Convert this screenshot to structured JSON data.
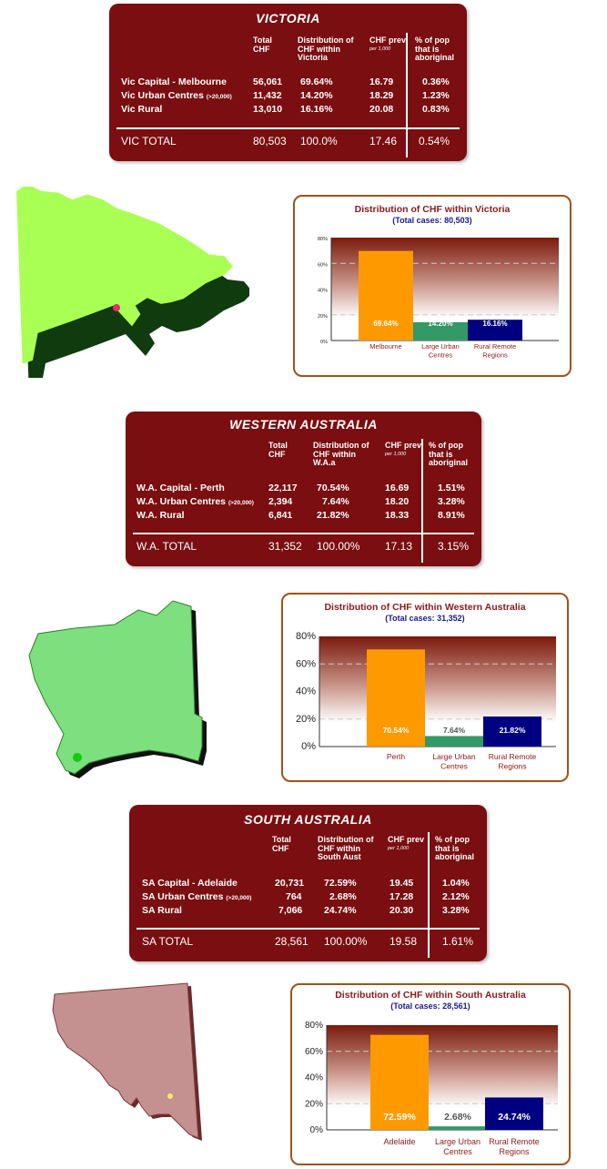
{
  "sections": [
    {
      "table": {
        "title": "VICTORIA",
        "headers": {
          "total": "Total CHF",
          "dist": "Distribution of CHF within Victoria",
          "prev": "CHF prev",
          "prev_note": "per 1,000",
          "pop": "% of pop that is aboriginal"
        },
        "rows": [
          {
            "label": "Vic  Capital - Melbourne",
            "note": "",
            "total": "56,061",
            "dist": "69.64%",
            "prev": "16.79",
            "pop": "0.36%"
          },
          {
            "label": "Vic  Urban Centres",
            "note": "(>20,000)",
            "total": "11,432",
            "dist": "14.20%",
            "prev": "18.29",
            "pop": "1.23%"
          },
          {
            "label": "Vic  Rural",
            "note": "",
            "total": "13,010",
            "dist": "16.16%",
            "prev": "20.08",
            "pop": "0.83%"
          }
        ],
        "total_row": {
          "label": "VIC TOTAL",
          "total": "80,503",
          "dist": "100.0%",
          "prev": "17.46",
          "pop": "0.54%"
        }
      }
    },
    {
      "table": {
        "title": "WESTERN AUSTRALIA",
        "headers": {
          "total": "Total CHF",
          "dist": "Distribution of CHF within W.A.a",
          "prev": "CHF prev",
          "prev_note": "per 1,000",
          "pop": "% of pop that is aboriginal"
        },
        "rows": [
          {
            "label": "W.A.  Capital - Perth",
            "note": "",
            "total": "22,117",
            "dist": "70.54%",
            "prev": "16.69",
            "pop": "1.51%"
          },
          {
            "label": "W.A.  Urban Centres",
            "note": "(>20,000)",
            "total": "2,394",
            "dist": "7.64%",
            "prev": "18.20",
            "pop": "3.28%"
          },
          {
            "label": "W.A.  Rural",
            "note": "",
            "total": "6,841",
            "dist": "21.82%",
            "prev": "18.33",
            "pop": "8.91%"
          }
        ],
        "total_row": {
          "label": "W.A.  TOTAL",
          "total": "31,352",
          "dist": "100.00%",
          "prev": "17.13",
          "pop": "3.15%"
        }
      }
    },
    {
      "table": {
        "title": "SOUTH AUSTRALIA",
        "headers": {
          "total": "Total CHF",
          "dist": "Distribution of CHF within South Aust",
          "prev": "CHF prev",
          "prev_note": "per 1,000",
          "pop": "% of pop that is aboriginal"
        },
        "rows": [
          {
            "label": "SA Capital - Adelaide",
            "note": "",
            "total": "20,731",
            "dist": "72.59%",
            "prev": "19.45",
            "pop": "1.04%"
          },
          {
            "label": "SA Urban Centres",
            "note": "(>20,000)",
            "total": "764",
            "dist": "2.68%",
            "prev": "17.28",
            "pop": "2.12%"
          },
          {
            "label": "SA Rural",
            "note": "",
            "total": "7,066",
            "dist": "24.74%",
            "prev": "20.30",
            "pop": "3.28%"
          }
        ],
        "total_row": {
          "label": "SA TOTAL",
          "total": "28,561",
          "dist": "100.00%",
          "prev": "19.58",
          "pop": "1.61%"
        }
      }
    }
  ],
  "chart_data": [
    {
      "type": "bar",
      "title": "Distribution of CHF within Victoria",
      "subtitle": "(Total cases: 80,503)",
      "categories": [
        "Melbourne",
        "Large Urban Centres",
        "Rural Remote Regions"
      ],
      "values": [
        69.64,
        14.2,
        16.16
      ],
      "data_labels": [
        "69.64%",
        "14.20%",
        "16.16%"
      ],
      "bar_colors": [
        "#ff9900",
        "#339966",
        "#000080"
      ],
      "yticks": [
        "0%",
        "20%",
        "40%",
        "60%",
        "80%"
      ],
      "ylim": [
        0,
        80
      ],
      "grid": true
    },
    {
      "type": "bar",
      "title": "Distribution of CHF within Western Australia",
      "subtitle": "(Total cases: 31,352)",
      "categories": [
        "Perth",
        "Large Urban Centres",
        "Rural Remote Regions"
      ],
      "values": [
        70.54,
        7.64,
        21.82
      ],
      "data_labels": [
        "70.54%",
        "7.64%",
        "21.82%"
      ],
      "bar_colors": [
        "#ff9900",
        "#339966",
        "#000080"
      ],
      "yticks": [
        "0%",
        "20%",
        "40%",
        "60%",
        "80%"
      ],
      "ylim": [
        0,
        80
      ],
      "grid": true
    },
    {
      "type": "bar",
      "title": "Distribution of CHF within South Australia",
      "subtitle": "(Total cases: 28,561)",
      "categories": [
        "Adelaide",
        "Large Urban Centres",
        "Rural Remote Regions"
      ],
      "values": [
        72.59,
        2.68,
        24.74
      ],
      "data_labels": [
        "72.59%",
        "2.68%",
        "24.74%"
      ],
      "bar_colors": [
        "#ff9900",
        "#339966",
        "#000080"
      ],
      "yticks": [
        "0%",
        "20%",
        "40%",
        "60%",
        "80%"
      ],
      "ylim": [
        0,
        80
      ],
      "grid": true
    }
  ],
  "colors": {
    "panel": "#7a0e10",
    "chart_border": "#a0521a",
    "title_red": "#8b1a1a",
    "subtitle_blue": "#1a1a8c",
    "vic_map": "#aaff55",
    "wa_map": "#7ddf7d",
    "sa_map": "#c49090"
  },
  "icons": {
    "vic_map": "victoria-map-icon",
    "wa_map": "western-australia-map-icon",
    "sa_map": "south-australia-map-icon"
  }
}
